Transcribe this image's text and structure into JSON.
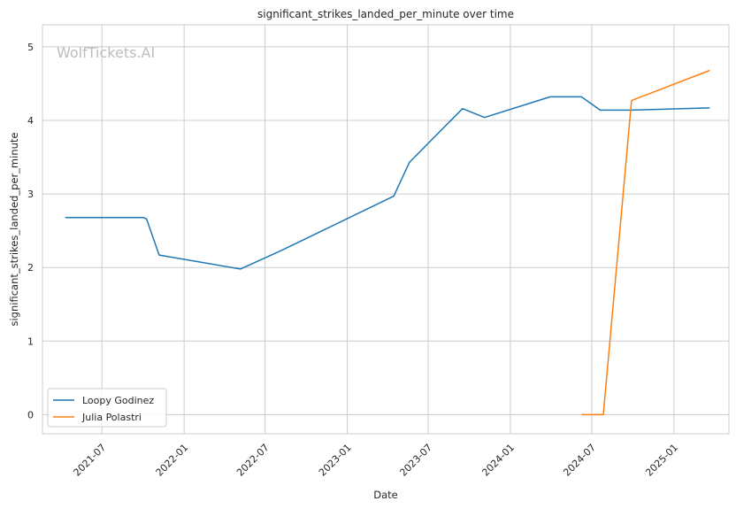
{
  "chart_data": {
    "type": "line",
    "title": "significant_strikes_landed_per_minute over time",
    "xlabel": "Date",
    "ylabel": "significant_strikes_landed_per_minute",
    "watermark": "WolfTickets.AI",
    "xlim": [
      "2021-02-18",
      "2025-05-04"
    ],
    "ylim": [
      -0.26,
      5.3
    ],
    "x_ticks": [
      "2021-07",
      "2022-01",
      "2022-07",
      "2023-01",
      "2023-07",
      "2024-01",
      "2024-07",
      "2025-01"
    ],
    "y_ticks": [
      0,
      1,
      2,
      3,
      4,
      5
    ],
    "grid": true,
    "legend_position": "lower-left",
    "series": [
      {
        "name": "Loopy Godinez",
        "color": "#1f77b4",
        "points": [
          {
            "x": "2021-04-10",
            "y": 2.68
          },
          {
            "x": "2021-10-02",
            "y": 2.68
          },
          {
            "x": "2021-10-09",
            "y": 2.66
          },
          {
            "x": "2021-11-06",
            "y": 2.17
          },
          {
            "x": "2022-05-07",
            "y": 1.98
          },
          {
            "x": "2022-08-06",
            "y": 2.23
          },
          {
            "x": "2023-04-15",
            "y": 2.97
          },
          {
            "x": "2023-05-20",
            "y": 3.43
          },
          {
            "x": "2023-09-16",
            "y": 4.16
          },
          {
            "x": "2023-11-04",
            "y": 4.04
          },
          {
            "x": "2024-03-30",
            "y": 4.32
          },
          {
            "x": "2024-06-08",
            "y": 4.32
          },
          {
            "x": "2024-07-20",
            "y": 4.14
          },
          {
            "x": "2024-09-28",
            "y": 4.14
          },
          {
            "x": "2025-03-22",
            "y": 4.17
          }
        ]
      },
      {
        "name": "Julia Polastri",
        "color": "#ff7f0e",
        "points": [
          {
            "x": "2024-06-08",
            "y": 0.0
          },
          {
            "x": "2024-07-27",
            "y": 0.0
          },
          {
            "x": "2024-09-28",
            "y": 4.27
          },
          {
            "x": "2025-03-22",
            "y": 4.68
          }
        ]
      }
    ]
  }
}
